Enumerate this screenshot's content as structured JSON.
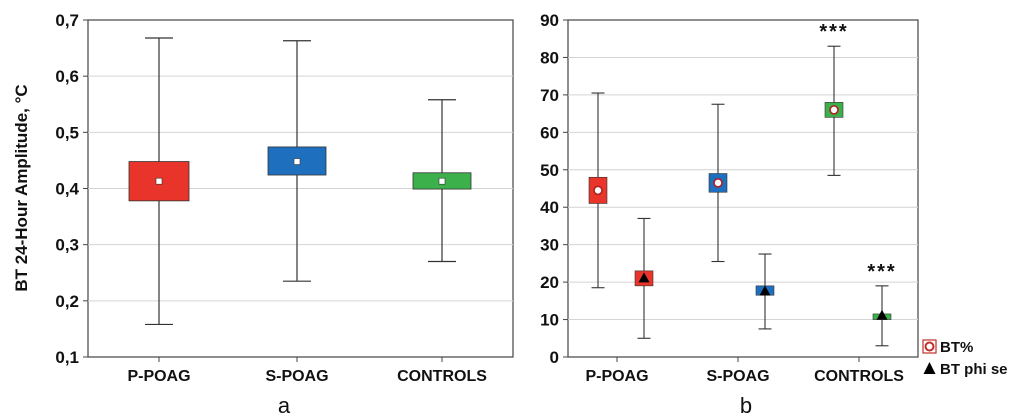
{
  "chart_data": [
    {
      "type": "box",
      "panel_label": "a",
      "ylabel": "BT 24-Hour Amplitude, °C",
      "ylim": [
        0.1,
        0.7
      ],
      "y_ticks": [
        "0,1",
        "0,2",
        "0,3",
        "0,4",
        "0,5",
        "0,6",
        "0,7"
      ],
      "grid": true,
      "categories": [
        "P-POAG",
        "S-POAG",
        "CONTROLS"
      ],
      "boxes": [
        {
          "category": "P-POAG",
          "mean": 0.413,
          "box_low": 0.378,
          "box_high": 0.448,
          "whisker_low": 0.158,
          "whisker_high": 0.668,
          "color": "#e8342a"
        },
        {
          "category": "S-POAG",
          "mean": 0.448,
          "box_low": 0.424,
          "box_high": 0.474,
          "whisker_low": 0.235,
          "whisker_high": 0.663,
          "color": "#1f6fbf"
        },
        {
          "category": "CONTROLS",
          "mean": 0.413,
          "box_low": 0.399,
          "box_high": 0.428,
          "whisker_low": 0.27,
          "whisker_high": 0.558,
          "color": "#3cb04a"
        }
      ]
    },
    {
      "type": "box",
      "panel_label": "b",
      "ylim": [
        0,
        90
      ],
      "y_ticks": [
        "0",
        "10",
        "20",
        "30",
        "40",
        "50",
        "60",
        "70",
        "80",
        "90"
      ],
      "grid": true,
      "categories": [
        "P-POAG",
        "S-POAG",
        "CONTROLS"
      ],
      "legend_position": "bottom-right",
      "series": [
        {
          "name": "BT%",
          "marker": "circle",
          "boxes": [
            {
              "category": "P-POAG",
              "mean": 44.5,
              "box_low": 41,
              "box_high": 48,
              "whisker_low": 18.5,
              "whisker_high": 70.5,
              "color": "#e8342a"
            },
            {
              "category": "S-POAG",
              "mean": 46.5,
              "box_low": 44,
              "box_high": 49,
              "whisker_low": 25.5,
              "whisker_high": 67.5,
              "color": "#1f6fbf"
            },
            {
              "category": "CONTROLS",
              "mean": 66,
              "box_low": 64,
              "box_high": 68,
              "whisker_low": 48.5,
              "whisker_high": 83,
              "color": "#3cb04a",
              "annotation": "***"
            }
          ]
        },
        {
          "name": "BT phi se",
          "marker": "triangle",
          "boxes": [
            {
              "category": "P-POAG",
              "mean": 21,
              "box_low": 19,
              "box_high": 23,
              "whisker_low": 5,
              "whisker_high": 37,
              "color": "#e8342a"
            },
            {
              "category": "S-POAG",
              "mean": 17.5,
              "box_low": 16.5,
              "box_high": 19,
              "whisker_low": 7.5,
              "whisker_high": 27.5,
              "color": "#1f6fbf"
            },
            {
              "category": "CONTROLS",
              "mean": 11,
              "box_low": 10,
              "box_high": 11.5,
              "whisker_low": 3,
              "whisker_high": 19,
              "color": "#3cb04a",
              "annotation": "***"
            }
          ]
        }
      ]
    }
  ]
}
